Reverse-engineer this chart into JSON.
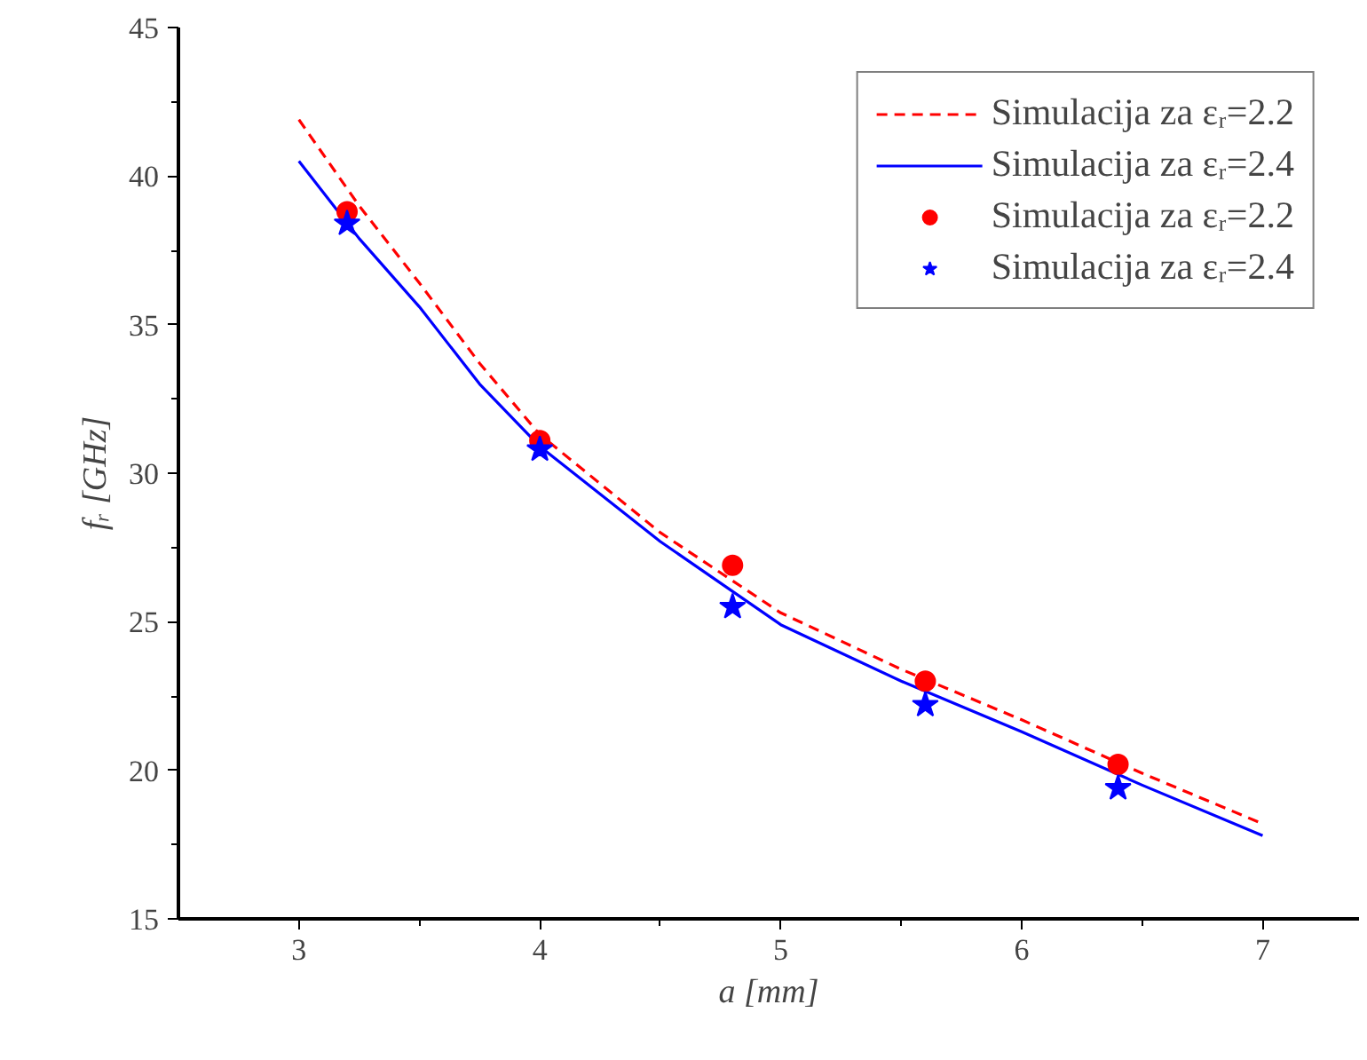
{
  "chart_data": {
    "type": "line",
    "xlabel": "a [mm]",
    "ylabel": "fᵣ [GHz]",
    "xlim": [
      2.5,
      7.4
    ],
    "ylim": [
      15,
      45
    ],
    "xticks": [
      3,
      4,
      5,
      6,
      7
    ],
    "yticks": [
      15,
      20,
      25,
      30,
      35,
      40,
      45
    ],
    "grid": false,
    "legend": "top right",
    "series": [
      {
        "name": "Simulacija za εᵣ=2.2",
        "line_style": "dashed",
        "color": "#ff0000",
        "x": [
          3,
          3.25,
          3.5,
          3.75,
          4,
          4.5,
          5,
          5.5,
          6,
          6.5,
          7
        ],
        "values": [
          41.9,
          39.0,
          36.4,
          33.7,
          31.3,
          28.0,
          25.3,
          23.4,
          21.7,
          19.9,
          18.2
        ]
      },
      {
        "name": "Simulacija za εᵣ=2.4",
        "line_style": "solid",
        "color": "#0000ff",
        "x": [
          3,
          3.25,
          3.5,
          3.75,
          4,
          4.5,
          5,
          5.5,
          6,
          6.5,
          7
        ],
        "values": [
          40.5,
          37.9,
          35.6,
          33.0,
          30.9,
          27.7,
          24.9,
          23.0,
          21.3,
          19.5,
          17.8
        ]
      },
      {
        "name": "Simulacija za εᵣ=2.2",
        "type": "scatter",
        "marker": "circle",
        "color": "#ff0000",
        "x": [
          3.2,
          4,
          4.8,
          5.6,
          6.4
        ],
        "values": [
          38.8,
          31.1,
          26.9,
          23.0,
          20.2
        ]
      },
      {
        "name": "Simulacija za εᵣ=2.4",
        "type": "scatter",
        "marker": "star",
        "color": "#0000ff",
        "x": [
          3.2,
          4,
          4.8,
          5.6,
          6.4
        ],
        "values": [
          38.4,
          30.8,
          25.5,
          22.2,
          19.4
        ]
      }
    ]
  }
}
